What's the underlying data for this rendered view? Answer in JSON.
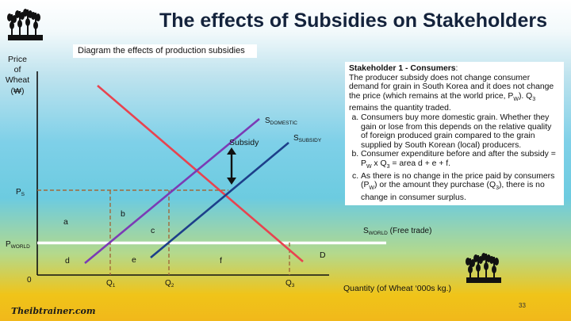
{
  "title": "The effects of Subsidies on Stakeholders",
  "caption": "Diagram the effects of production subsidies",
  "textbox": {
    "heading": "Stakeholder 1 - Consumers",
    "colon": ":",
    "intro_1": "The producer subsidy does not change consumer demand for grain in South Korea and it does not change the price (which remains at the world price, P",
    "intro_sub": "W",
    "intro_2": "). Q",
    "intro_sub2": "3",
    "intro_3": " remains the quantity traded.",
    "a": "Consumers buy more domestic grain. Whether they gain or lose from this depends on the relative quality of foreign produced grain compared to the grain supplied by South Korean (local) producers.",
    "b": "Consumer expenditure before and after the subsidy = P",
    "b_sub1": "W",
    "b_mid": " x Q",
    "b_sub2": "3",
    "b_end": " = area d + e + f.",
    "c_1": "As there is no change in the price paid by consumers (P",
    "c_sub1": "W",
    "c_2": ") or the amount they purchase (Q",
    "c_sub2": "3",
    "c_3": "), there is no change in consumer surplus."
  },
  "axes": {
    "y_label_1": "Price",
    "y_label_2": "of",
    "y_label_3": "Wheat",
    "y_label_4": "(₩)",
    "x_label": "Quantity (of Wheat ‘000s kg.)",
    "origin": "0"
  },
  "labels": {
    "ps": "P",
    "ps_sub": "S",
    "pworld": "P",
    "pworld_sub": "WORLD",
    "q1": "Q",
    "q1_sub": "1",
    "q2": "Q",
    "q2_sub": "2",
    "q3": "Q",
    "q3_sub": "3",
    "s_domestic": "S",
    "s_domestic_sub": "DOMESTIC",
    "s_subsidy": "S",
    "s_subsidy_sub": "SUBSIDY",
    "s_world": "S",
    "s_world_sub": "WORLD",
    "s_world_note": " (Free trade)",
    "subsidy": "Subsidy",
    "demand": "D",
    "area_a": "a",
    "area_b": "b",
    "area_c": "c",
    "area_d": "d",
    "area_e": "e",
    "area_f": "f"
  },
  "colors": {
    "demand": "#e8434f",
    "s_domestic": "#7b3bb5",
    "s_subsidy": "#1d3f8a",
    "dashed": "#a0693a",
    "world": "#ffffff",
    "arrow": "#111111"
  },
  "page_number": "33",
  "logo": "Theibtrainer.com",
  "logo_icons": [
    "wheat-icon",
    "wheat-icon"
  ]
}
